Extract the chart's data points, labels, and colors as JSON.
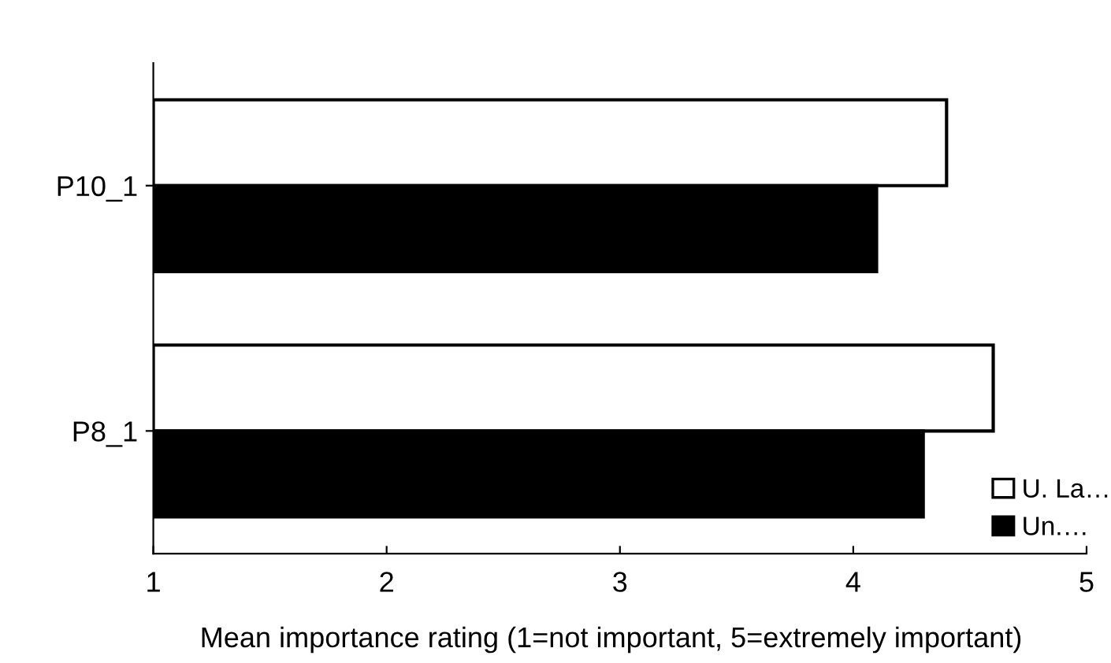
{
  "chart_data": {
    "type": "bar",
    "orientation": "horizontal",
    "xlabel": "Mean importance rating (1=not important, 5=extremely important)",
    "categories": [
      "P10_1",
      "P8_1"
    ],
    "series": [
      {
        "name": "U. La…",
        "color": "#ffffff",
        "values": [
          4.4,
          4.6
        ]
      },
      {
        "name": "Un.…",
        "color": "#000000",
        "values": [
          4.1,
          4.3
        ]
      }
    ],
    "xlim": [
      1,
      5
    ],
    "xticks": [
      1,
      2,
      3,
      4,
      5
    ],
    "grid": false,
    "legend": "bottom right"
  }
}
